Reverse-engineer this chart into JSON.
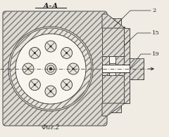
{
  "title": "А-А",
  "fig_label": "Фиг.2",
  "bg_color": "#f0ece4",
  "hatch_color": "#7a7a7a",
  "line_color": "#2a2a2a",
  "body_fill": "#dedad2",
  "white_fill": "#f8f5ef",
  "inner_fill": "#e8e4da"
}
